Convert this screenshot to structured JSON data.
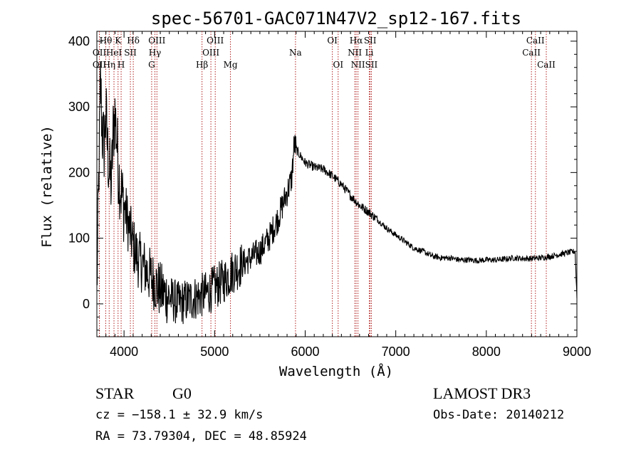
{
  "chart_data": {
    "type": "line",
    "title": "spec-56701-GAC071N47V2_sp12-167.fits",
    "xlabel": "Wavelength (Å)",
    "ylabel": "Flux (relative)",
    "xlim": [
      3700,
      9000
    ],
    "ylim": [
      -50,
      415
    ],
    "xticks": [
      4000,
      5000,
      6000,
      7000,
      8000,
      9000
    ],
    "yticks": [
      0,
      100,
      200,
      300,
      400
    ],
    "continuum": {
      "x": [
        3700,
        3720,
        3740,
        3760,
        3780,
        3800,
        3820,
        3840,
        3860,
        3880,
        3900,
        3920,
        3940,
        3960,
        3980,
        4000,
        4050,
        4100,
        4150,
        4200,
        4250,
        4300,
        4350,
        4400,
        4450,
        4500,
        4600,
        4700,
        4800,
        4900,
        5000,
        5100,
        5200,
        5300,
        5400,
        5500,
        5600,
        5700,
        5750,
        5800,
        5850,
        5880,
        5890,
        5900,
        5950,
        6000,
        6100,
        6200,
        6300,
        6400,
        6500,
        6600,
        6700,
        6800,
        6900,
        7000,
        7100,
        7200,
        7300,
        7400,
        7500,
        7600,
        7700,
        7800,
        7900,
        8000,
        8100,
        8200,
        8300,
        8400,
        8500,
        8600,
        8700,
        8800,
        8900,
        8980,
        9000
      ],
      "y": [
        20,
        180,
        340,
        260,
        240,
        290,
        230,
        200,
        180,
        260,
        290,
        250,
        200,
        180,
        160,
        150,
        120,
        90,
        70,
        60,
        50,
        40,
        30,
        20,
        15,
        10,
        0,
        5,
        10,
        15,
        25,
        35,
        50,
        60,
        70,
        80,
        100,
        130,
        150,
        170,
        190,
        245,
        240,
        235,
        225,
        215,
        208,
        205,
        195,
        182,
        165,
        150,
        140,
        128,
        115,
        105,
        95,
        85,
        80,
        73,
        70,
        70,
        67,
        67,
        66,
        67,
        67,
        68,
        70,
        69,
        69,
        70,
        72,
        75,
        78,
        80,
        10
      ]
    },
    "lines": [
      {
        "label": "Hθ",
        "x": 3798,
        "row": 1
      },
      {
        "label": "OII",
        "x": 3728,
        "row": 2
      },
      {
        "label": "OII",
        "x": 3728,
        "row": 3
      },
      {
        "label": "Hη",
        "x": 3836,
        "row": 3
      },
      {
        "label": "K",
        "x": 3934,
        "row": 1
      },
      {
        "label": "HeI",
        "x": 3889,
        "row": 2
      },
      {
        "label": "H",
        "x": 3968,
        "row": 3
      },
      {
        "label": "Hδ",
        "x": 4102,
        "row": 1
      },
      {
        "label": "SII",
        "x": 4070,
        "row": 2
      },
      {
        "label": "OIII",
        "x": 4363,
        "row": 1
      },
      {
        "label": "Hγ",
        "x": 4341,
        "row": 2
      },
      {
        "label": "G",
        "x": 4305,
        "row": 3
      },
      {
        "label": "OIII",
        "x": 5007,
        "row": 1
      },
      {
        "label": "OIII",
        "x": 4959,
        "row": 2
      },
      {
        "label": "Hβ",
        "x": 4861,
        "row": 3
      },
      {
        "label": "Mg",
        "x": 5175,
        "row": 3
      },
      {
        "label": "Na",
        "x": 5893,
        "row": 2
      },
      {
        "label": "OI",
        "x": 6300,
        "row": 1
      },
      {
        "label": "OI",
        "x": 6364,
        "row": 3
      },
      {
        "label": "Hα",
        "x": 6563,
        "row": 1
      },
      {
        "label": "NII",
        "x": 6548,
        "row": 2
      },
      {
        "label": "NII",
        "x": 6583,
        "row": 3
      },
      {
        "label": "SII",
        "x": 6717,
        "row": 1
      },
      {
        "label": "Li",
        "x": 6708,
        "row": 2
      },
      {
        "label": "SII",
        "x": 6731,
        "row": 3
      },
      {
        "label": "CaII",
        "x": 8542,
        "row": 1
      },
      {
        "label": "CaII",
        "x": 8498,
        "row": 2
      },
      {
        "label": "CaII",
        "x": 8662,
        "row": 3
      }
    ]
  },
  "info": {
    "object_class": "STAR",
    "subclass": "G0",
    "survey": "LAMOST DR3",
    "cz": "cz = −158.1 ± 32.9 km/s",
    "obs_date": "Obs-Date: 20140212",
    "coords": "RA =  73.79304, DEC =  48.85924"
  },
  "colors": {
    "line_marker": "#b22222",
    "spectrum": "#000000"
  }
}
